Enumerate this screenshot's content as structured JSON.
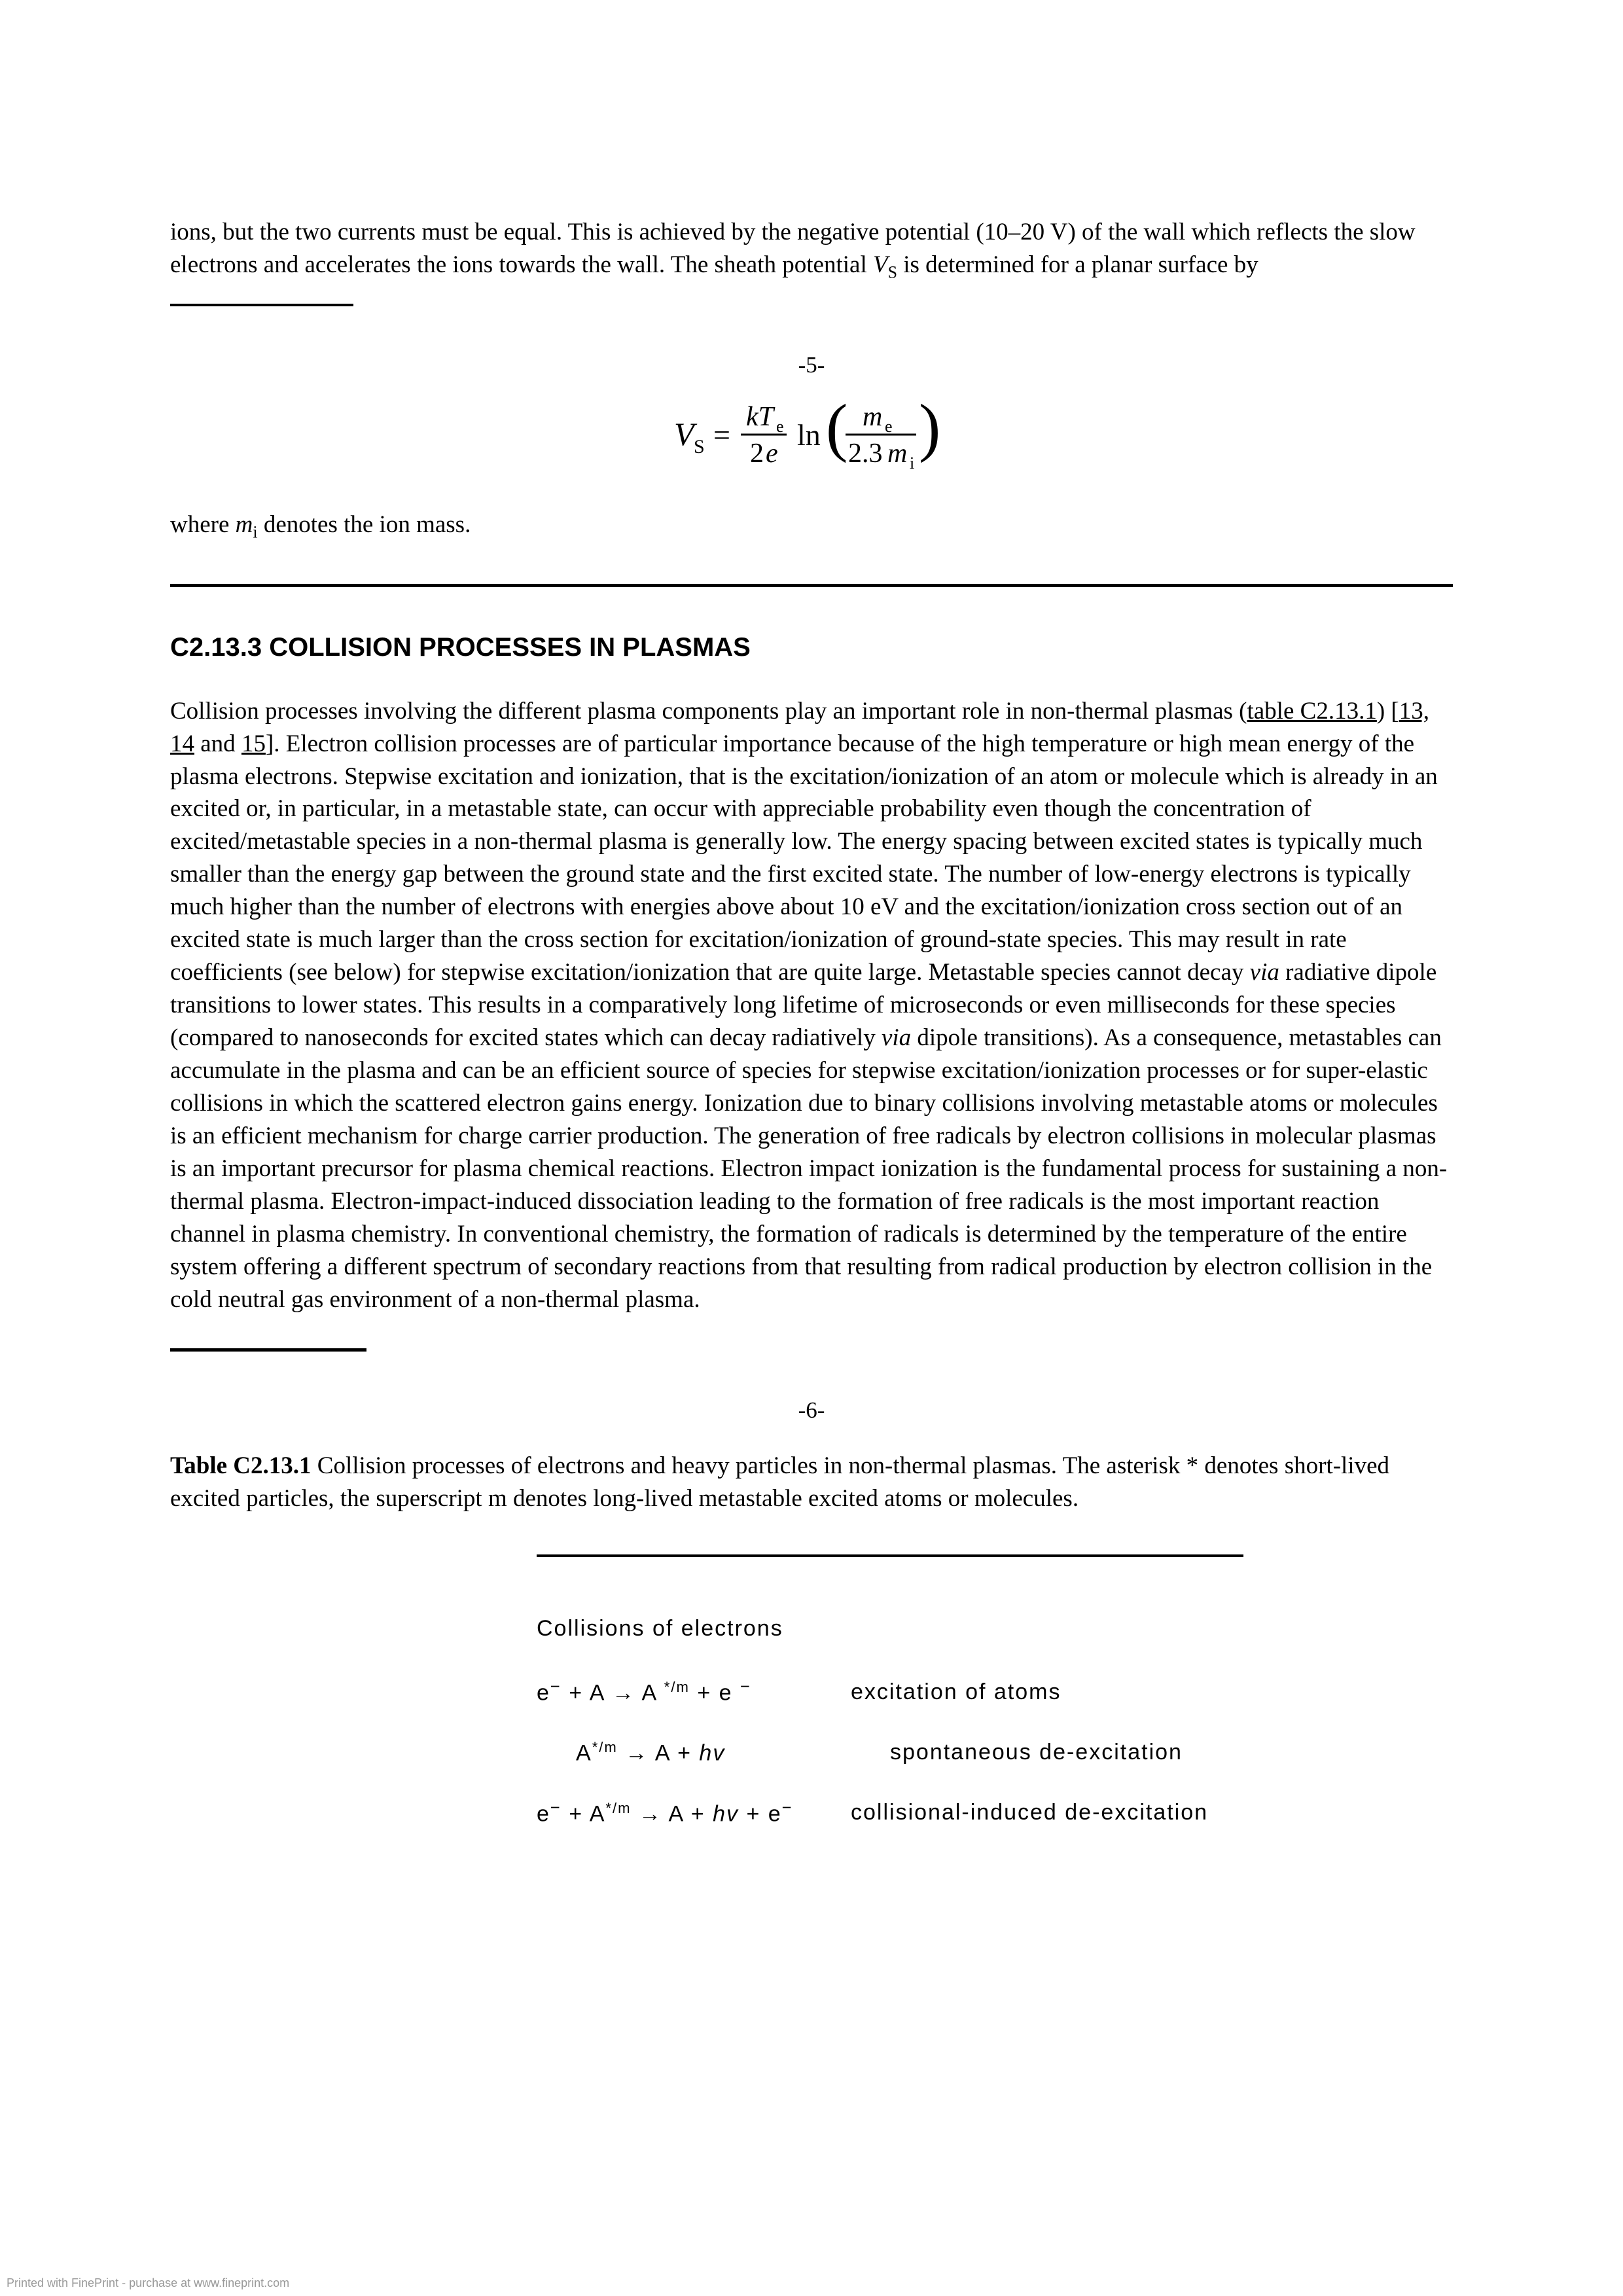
{
  "intro_para": "ions, but the two currents must be equal. This is achieved by the negative potential (10–20 V) of the wall which reflects the slow electrons and accelerates the ions towards the wall. The sheath potential ",
  "intro_var_html": "V",
  "intro_sub": "S",
  "intro_tail": " is determined for a planar surface by",
  "page_marker_5": "-5-",
  "equation": {
    "lhs": "V",
    "lhs_sub": "S",
    "eq": " = ",
    "frac1_num_k": "k",
    "frac1_num_T": "T",
    "frac1_num_sub": "e",
    "frac1_den": "2e",
    "ln": "ln",
    "frac2_num_m": "m",
    "frac2_num_sub": "e",
    "frac2_den_pre": "2.3",
    "frac2_den_m": "m",
    "frac2_den_sub": "i"
  },
  "post_eq_pre": "where ",
  "post_eq_var": "m",
  "post_eq_sub": "i",
  "post_eq_tail": " denotes the ion mass.",
  "section_heading": "C2.13.3 COLLISION PROCESSES IN PLASMAS",
  "main_para_parts": {
    "p1": "Collision processes involving the different plasma components play an important role in non-thermal plasmas (",
    "link1": "table C2.13.1",
    "p2": ") [",
    "link2": "13,",
    "p3": " ",
    "link3": "14",
    "p4": " and ",
    "link4": "15",
    "p5": "]. Electron collision processes are of particular importance because of the high temperature or high mean energy of the plasma electrons. Stepwise excitation and ionization, that is the excitation/ionization of an atom or molecule which is already in an excited or, in particular, in a metastable state, can occur with appreciable probability even though the concentration of excited/metastable species in a non-thermal plasma is generally low. The energy spacing between excited states is typically much smaller than the energy gap between the ground state and the first excited state. The number of low-energy electrons is typically much higher than the number of electrons with energies above about 10 eV and the excitation/ionization cross section out of an excited state is much larger than the cross section for excitation/ionization of ground-state species. This may result in rate coefficients (see below) for stepwise excitation/ionization that are quite large. Metastable species cannot decay ",
    "via1": "via",
    "p6": " radiative dipole transitions to lower states. This results in a comparatively long lifetime of microseconds or even milliseconds for these species (compared to nanoseconds for excited states which can decay radiatively ",
    "via2": "via",
    "p7": " dipole transitions). As a consequence, metastables can accumulate in the plasma and can be an efficient source of species for stepwise excitation/ionization processes or for super-elastic collisions in which the scattered electron gains energy. Ionization due to binary collisions involving metastable atoms or molecules is an efficient mechanism for charge carrier production. The generation of free radicals by electron collisions in molecular plasmas is an important precursor for plasma chemical reactions. Electron impact ionization is the fundamental process for sustaining a non-thermal plasma. Electron-impact-induced dissociation leading to the formation of free radicals is the most important reaction channel in plasma chemistry. In conventional chemistry, the formation of radicals is determined by the temperature of the entire system offering a different spectrum of secondary reactions from that resulting from radical production by electron collision in the cold neutral gas environment of a non-thermal plasma."
  },
  "page_marker_6": "-6-",
  "table_caption_bold": "Table C2.13.1",
  "table_caption_rest": " Collision processes of electrons and heavy particles in non-thermal plasmas. The asterisk * denotes short-lived excited particles, the superscript m denotes long-lived metastable excited atoms or molecules.",
  "table_heading": "Collisions of electrons",
  "reactions": [
    {
      "lhs_html": "e<sup class='sup-lg'>−</sup> + A → A <sup class='sup'>*/m</sup> + e <sup class='sup-lg'>−</sup>",
      "label": "excitation of atoms",
      "indent": false
    },
    {
      "lhs_html": "A<sup class='sup'>*/m</sup> → A + <span class='italic'>hv</span>",
      "label": "spontaneous de-excitation",
      "indent": true
    },
    {
      "lhs_html": "e<sup class='sup-lg'>−</sup> + A<sup class='sup'>*/m</sup> → A + <span class='italic'>hv</span> + e<sup class='sup-lg'>−</sup>",
      "label": "collisional-induced de-excitation",
      "indent": false
    }
  ],
  "footer": "Printed with FinePrint - purchase at www.fineprint.com"
}
